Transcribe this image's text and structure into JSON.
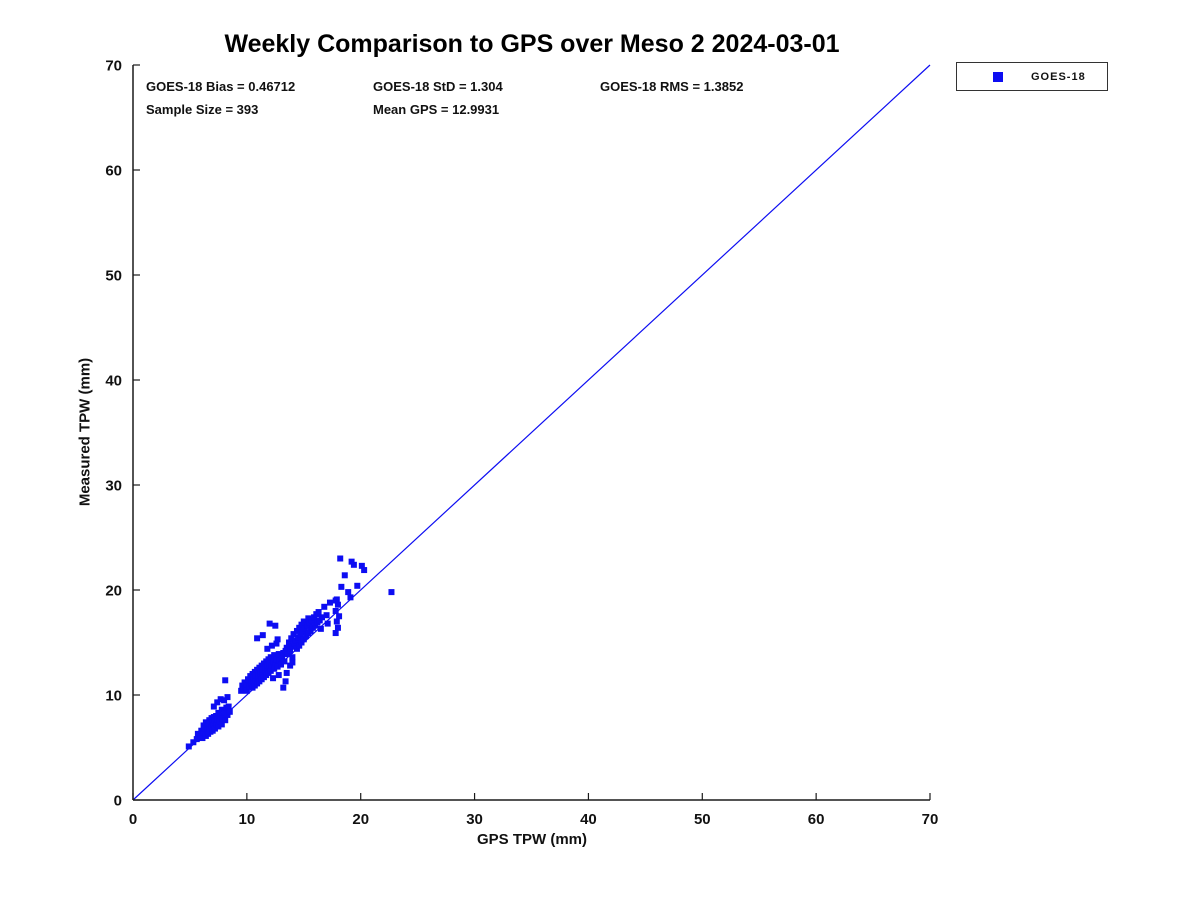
{
  "figure": {
    "title": "Weekly Comparison to GPS over Meso 2 2024-03-01",
    "stats": {
      "bias": "GOES-18 Bias = 0.46712",
      "std": "GOES-18 StD = 1.304",
      "rms": "GOES-18 RMS = 1.3852",
      "sample": "Sample Size = 393",
      "mean_gps": "Mean GPS = 12.9931"
    },
    "legend": {
      "label": "GOES-18",
      "marker_color": "#0d0df2"
    }
  },
  "chart_data": {
    "type": "scatter",
    "title": "Weekly Comparison to GPS over Meso 2 2024-03-01",
    "xlabel": "GPS TPW (mm)",
    "ylabel": "Measured TPW (mm)",
    "xlim": [
      0,
      70
    ],
    "ylim": [
      0,
      70
    ],
    "xticks": [
      0,
      10,
      20,
      30,
      40,
      50,
      60,
      70
    ],
    "yticks": [
      0,
      10,
      20,
      30,
      40,
      50,
      60,
      70
    ],
    "grid": false,
    "legend_position": "top-right",
    "axis_color": "#1a1a1a",
    "reference_line": {
      "from": [
        0,
        0
      ],
      "to": [
        70,
        70
      ],
      "color": "#0d0df2"
    },
    "annotations": [
      "GOES-18 Bias = 0.46712",
      "GOES-18 StD = 1.304",
      "GOES-18 RMS = 1.3852",
      "Sample Size = 393",
      "Mean GPS = 12.9931"
    ],
    "series": [
      {
        "name": "GOES-18",
        "marker": "square",
        "color": "#0d0df2",
        "points": [
          [
            4.9,
            5.1
          ],
          [
            5.3,
            5.5
          ],
          [
            5.6,
            5.8
          ],
          [
            5.7,
            6.3
          ],
          [
            5.9,
            6.1
          ],
          [
            6.0,
            6.6
          ],
          [
            6.1,
            5.9
          ],
          [
            6.2,
            6.4
          ],
          [
            6.2,
            7.1
          ],
          [
            6.3,
            6.8
          ],
          [
            6.4,
            6.1
          ],
          [
            6.4,
            7.4
          ],
          [
            6.5,
            6.6
          ],
          [
            6.5,
            7.0
          ],
          [
            6.6,
            6.3
          ],
          [
            6.6,
            7.2
          ],
          [
            6.7,
            6.8
          ],
          [
            6.7,
            7.6
          ],
          [
            6.8,
            6.5
          ],
          [
            6.8,
            7.3
          ],
          [
            6.9,
            7.0
          ],
          [
            6.9,
            7.8
          ],
          [
            7.0,
            6.6
          ],
          [
            7.0,
            7.4
          ],
          [
            7.1,
            7.1
          ],
          [
            7.1,
            7.9
          ],
          [
            7.2,
            6.8
          ],
          [
            7.2,
            7.6
          ],
          [
            7.3,
            7.2
          ],
          [
            7.3,
            8.0
          ],
          [
            7.4,
            7.7
          ],
          [
            7.5,
            7.0
          ],
          [
            7.5,
            8.3
          ],
          [
            7.6,
            7.5
          ],
          [
            7.7,
            8.0
          ],
          [
            7.8,
            7.2
          ],
          [
            7.8,
            8.6
          ],
          [
            7.9,
            7.8
          ],
          [
            8.0,
            8.3
          ],
          [
            8.1,
            7.6
          ],
          [
            8.2,
            8.8
          ],
          [
            8.3,
            8.1
          ],
          [
            8.4,
            8.9
          ],
          [
            8.5,
            8.4
          ],
          [
            7.4,
            9.3
          ],
          [
            7.7,
            9.6
          ],
          [
            8.0,
            9.5
          ],
          [
            8.3,
            9.8
          ],
          [
            7.1,
            8.9
          ],
          [
            8.1,
            11.4
          ],
          [
            9.5,
            10.4
          ],
          [
            9.6,
            10.9
          ],
          [
            9.7,
            10.5
          ],
          [
            9.8,
            11.2
          ],
          [
            9.9,
            10.7
          ],
          [
            10.0,
            10.4
          ],
          [
            10.0,
            11.0
          ],
          [
            10.1,
            11.5
          ],
          [
            10.2,
            10.8
          ],
          [
            10.3,
            11.8
          ],
          [
            10.4,
            11.0
          ],
          [
            10.4,
            11.4
          ],
          [
            10.5,
            10.7
          ],
          [
            10.5,
            12.0
          ],
          [
            10.6,
            11.2
          ],
          [
            10.6,
            11.7
          ],
          [
            10.7,
            10.9
          ],
          [
            10.7,
            12.2
          ],
          [
            10.8,
            11.4
          ],
          [
            10.8,
            11.9
          ],
          [
            10.9,
            11.1
          ],
          [
            10.9,
            12.4
          ],
          [
            11.0,
            11.6
          ],
          [
            11.0,
            12.0
          ],
          [
            11.1,
            11.3
          ],
          [
            11.1,
            12.6
          ],
          [
            11.2,
            11.8
          ],
          [
            11.2,
            12.2
          ],
          [
            11.3,
            11.5
          ],
          [
            11.3,
            12.8
          ],
          [
            11.4,
            12.0
          ],
          [
            11.4,
            12.4
          ],
          [
            11.5,
            11.7
          ],
          [
            11.5,
            13.0
          ],
          [
            11.6,
            12.2
          ],
          [
            11.6,
            12.6
          ],
          [
            11.7,
            11.9
          ],
          [
            11.7,
            13.2
          ],
          [
            11.8,
            12.4
          ],
          [
            11.8,
            12.8
          ],
          [
            11.9,
            12.1
          ],
          [
            11.9,
            13.4
          ],
          [
            12.0,
            12.6
          ],
          [
            12.0,
            13.0
          ],
          [
            12.1,
            12.3
          ],
          [
            12.1,
            13.6
          ],
          [
            12.2,
            12.8
          ],
          [
            12.3,
            13.2
          ],
          [
            12.3,
            11.6
          ],
          [
            12.4,
            12.5
          ],
          [
            12.4,
            13.8
          ],
          [
            12.5,
            13.0
          ],
          [
            12.6,
            13.4
          ],
          [
            12.7,
            12.7
          ],
          [
            12.8,
            13.9
          ],
          [
            12.8,
            11.9
          ],
          [
            12.9,
            13.3
          ],
          [
            13.0,
            12.9
          ],
          [
            13.1,
            13.6
          ],
          [
            13.2,
            14.0
          ],
          [
            13.3,
            13.2
          ],
          [
            13.4,
            14.2
          ],
          [
            13.2,
            10.7
          ],
          [
            13.4,
            11.3
          ],
          [
            13.5,
            12.1
          ],
          [
            13.8,
            12.8
          ],
          [
            14.0,
            13.1
          ],
          [
            10.9,
            15.4
          ],
          [
            11.4,
            15.7
          ],
          [
            12.0,
            16.8
          ],
          [
            12.5,
            16.6
          ],
          [
            12.7,
            15.3
          ],
          [
            12.2,
            14.7
          ],
          [
            11.8,
            14.4
          ],
          [
            12.6,
            14.9
          ],
          [
            13.5,
            14.5
          ],
          [
            13.6,
            13.9
          ],
          [
            13.7,
            15.0
          ],
          [
            13.8,
            14.2
          ],
          [
            13.9,
            15.4
          ],
          [
            14.0,
            14.6
          ],
          [
            14.0,
            13.6
          ],
          [
            14.1,
            15.8
          ],
          [
            14.2,
            14.9
          ],
          [
            14.3,
            15.2
          ],
          [
            14.4,
            14.4
          ],
          [
            14.4,
            16.1
          ],
          [
            14.5,
            15.5
          ],
          [
            14.6,
            14.7
          ],
          [
            14.6,
            16.4
          ],
          [
            14.7,
            15.8
          ],
          [
            14.8,
            15.0
          ],
          [
            14.8,
            16.7
          ],
          [
            14.9,
            16.0
          ],
          [
            15.0,
            15.3
          ],
          [
            15.0,
            17.0
          ],
          [
            15.1,
            16.3
          ],
          [
            15.2,
            15.6
          ],
          [
            15.3,
            16.6
          ],
          [
            15.4,
            15.9
          ],
          [
            15.4,
            17.3
          ],
          [
            15.5,
            16.9
          ],
          [
            15.6,
            16.1
          ],
          [
            15.7,
            17.1
          ],
          [
            15.8,
            16.4
          ],
          [
            15.9,
            17.4
          ],
          [
            16.0,
            16.6
          ],
          [
            16.1,
            17.7
          ],
          [
            16.2,
            16.9
          ],
          [
            16.3,
            17.9
          ],
          [
            16.4,
            17.1
          ],
          [
            16.5,
            16.3
          ],
          [
            16.6,
            17.4
          ],
          [
            16.8,
            18.4
          ],
          [
            17.0,
            17.6
          ],
          [
            17.1,
            16.8
          ],
          [
            17.8,
            15.9
          ],
          [
            18.0,
            16.4
          ],
          [
            17.9,
            17.0
          ],
          [
            18.1,
            17.5
          ],
          [
            17.8,
            18.0
          ],
          [
            18.0,
            18.6
          ],
          [
            17.9,
            19.1
          ],
          [
            17.3,
            18.8
          ],
          [
            17.8,
            19.0
          ],
          [
            18.2,
            23.0
          ],
          [
            19.2,
            22.7
          ],
          [
            20.1,
            22.3
          ],
          [
            18.6,
            21.4
          ],
          [
            18.3,
            20.3
          ],
          [
            19.7,
            20.4
          ],
          [
            19.1,
            19.3
          ],
          [
            18.9,
            19.8
          ],
          [
            19.4,
            22.4
          ],
          [
            20.3,
            21.9
          ],
          [
            22.7,
            19.8
          ]
        ]
      }
    ]
  }
}
